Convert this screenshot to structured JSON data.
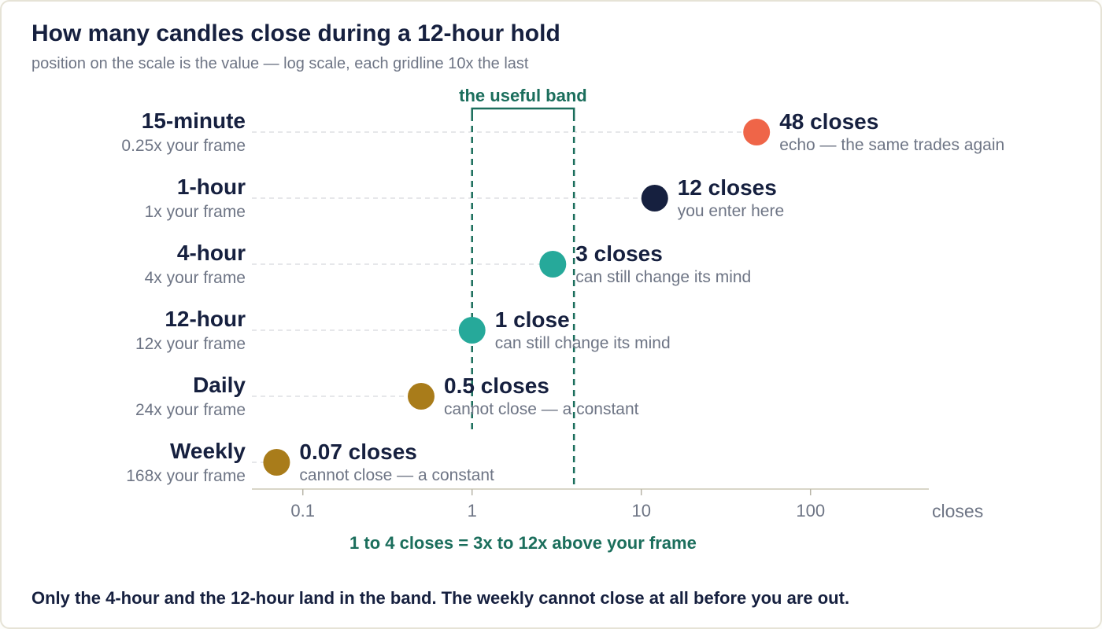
{
  "title": "How many candles close during a 12-hour hold",
  "subtitle": "position on the scale is the value — log scale, each gridline 10x the last",
  "footer": "Only the 4-hour and the 12-hour land in the band. The weekly cannot close at all before you are out.",
  "colors": {
    "echo": "#ef6548",
    "entry": "#16203f",
    "useful": "#26a99a",
    "constant": "#a97c1a",
    "band": "#1b6e5c",
    "label": "#16203f",
    "muted": "#6e7585"
  },
  "chart_data": {
    "type": "scatter",
    "x_scale": "log",
    "xlim": [
      0.05,
      500
    ],
    "x_ticks": [
      0.1,
      1,
      10,
      100
    ],
    "x_tick_labels": [
      "0.1",
      "1",
      "10",
      "100"
    ],
    "xlabel": "closes",
    "band": {
      "range": [
        1,
        4
      ],
      "title": "the useful band",
      "caption": "1 to 4 closes  =  3x to 12x above your frame"
    },
    "rows": [
      {
        "name": "15-minute",
        "multiple": "0.25x your frame",
        "value": 48,
        "value_label": "48 closes",
        "note": "echo — the same trades again",
        "category": "echo"
      },
      {
        "name": "1-hour",
        "multiple": "1x your frame",
        "value": 12,
        "value_label": "12 closes",
        "note": "you enter here",
        "category": "entry"
      },
      {
        "name": "4-hour",
        "multiple": "4x your frame",
        "value": 3,
        "value_label": "3 closes",
        "note": "can still change its mind",
        "category": "useful"
      },
      {
        "name": "12-hour",
        "multiple": "12x your frame",
        "value": 1,
        "value_label": "1 close",
        "note": "can still change its mind",
        "category": "useful"
      },
      {
        "name": "Daily",
        "multiple": "24x your frame",
        "value": 0.5,
        "value_label": "0.5 closes",
        "note": "cannot close — a constant",
        "category": "constant"
      },
      {
        "name": "Weekly",
        "multiple": "168x your frame",
        "value": 0.07,
        "value_label": "0.07 closes",
        "note": "cannot close — a constant",
        "category": "constant"
      }
    ]
  }
}
